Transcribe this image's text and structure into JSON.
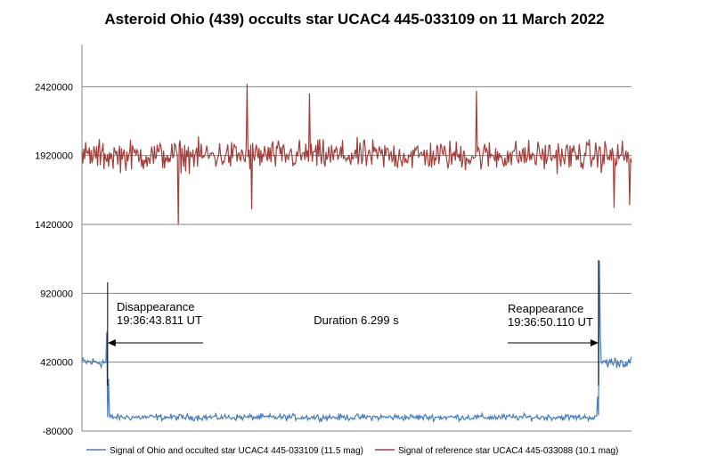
{
  "chart_data": {
    "type": "line",
    "title": "Asteroid Ohio (439) occults star UCAC4 445-033109 on 11 March 2022",
    "xlabel": "",
    "ylabel": "",
    "ylim": [
      -80000,
      2920000
    ],
    "yticks": [
      -80000,
      420000,
      920000,
      1420000,
      1920000,
      2420000
    ],
    "ytick_labels": [
      "-80000",
      "420000",
      "920000",
      "1420000",
      "1920000",
      "2420000"
    ],
    "grid": "horizontal",
    "legend_position": "bottom",
    "n_points": 600,
    "series": [
      {
        "name": "Signal of Ohio and occulted star UCAC4 445-033109 (11.5 mag)",
        "color": "#4a7ebb",
        "baseline": 420000,
        "noise": 60000,
        "occulted_level": 20000,
        "occulted_noise": 35000,
        "occultation_start_index": 28,
        "occultation_end_index": 563,
        "spikes": [
          {
            "index": 27,
            "value": 640000
          },
          {
            "index": 29,
            "value": 300000
          },
          {
            "index": 562,
            "value": 170000
          },
          {
            "index": 564,
            "value": 1160000
          },
          {
            "index": 565,
            "value": 620000
          }
        ]
      },
      {
        "name": "Signal of reference star UCAC4 445-033088 (10.1 mag)",
        "color": "#a0403c",
        "baseline": 1920000,
        "noise": 160000,
        "spikes": [
          {
            "index": 105,
            "value": 1420000
          },
          {
            "index": 180,
            "value": 2440000
          },
          {
            "index": 185,
            "value": 1530000
          },
          {
            "index": 248,
            "value": 2370000
          },
          {
            "index": 430,
            "value": 2390000
          },
          {
            "index": 580,
            "value": 1540000
          },
          {
            "index": 597,
            "value": 1560000
          }
        ]
      }
    ],
    "annotations": [
      {
        "type": "disappearance",
        "index": 28,
        "label": "Disappearance",
        "time": "19:36:43.811 UT"
      },
      {
        "type": "reappearance",
        "index": 563,
        "label": "Reappearance",
        "time": "19:36:50.110 UT"
      },
      {
        "type": "duration",
        "label": "Duration 6.299 s"
      }
    ]
  }
}
